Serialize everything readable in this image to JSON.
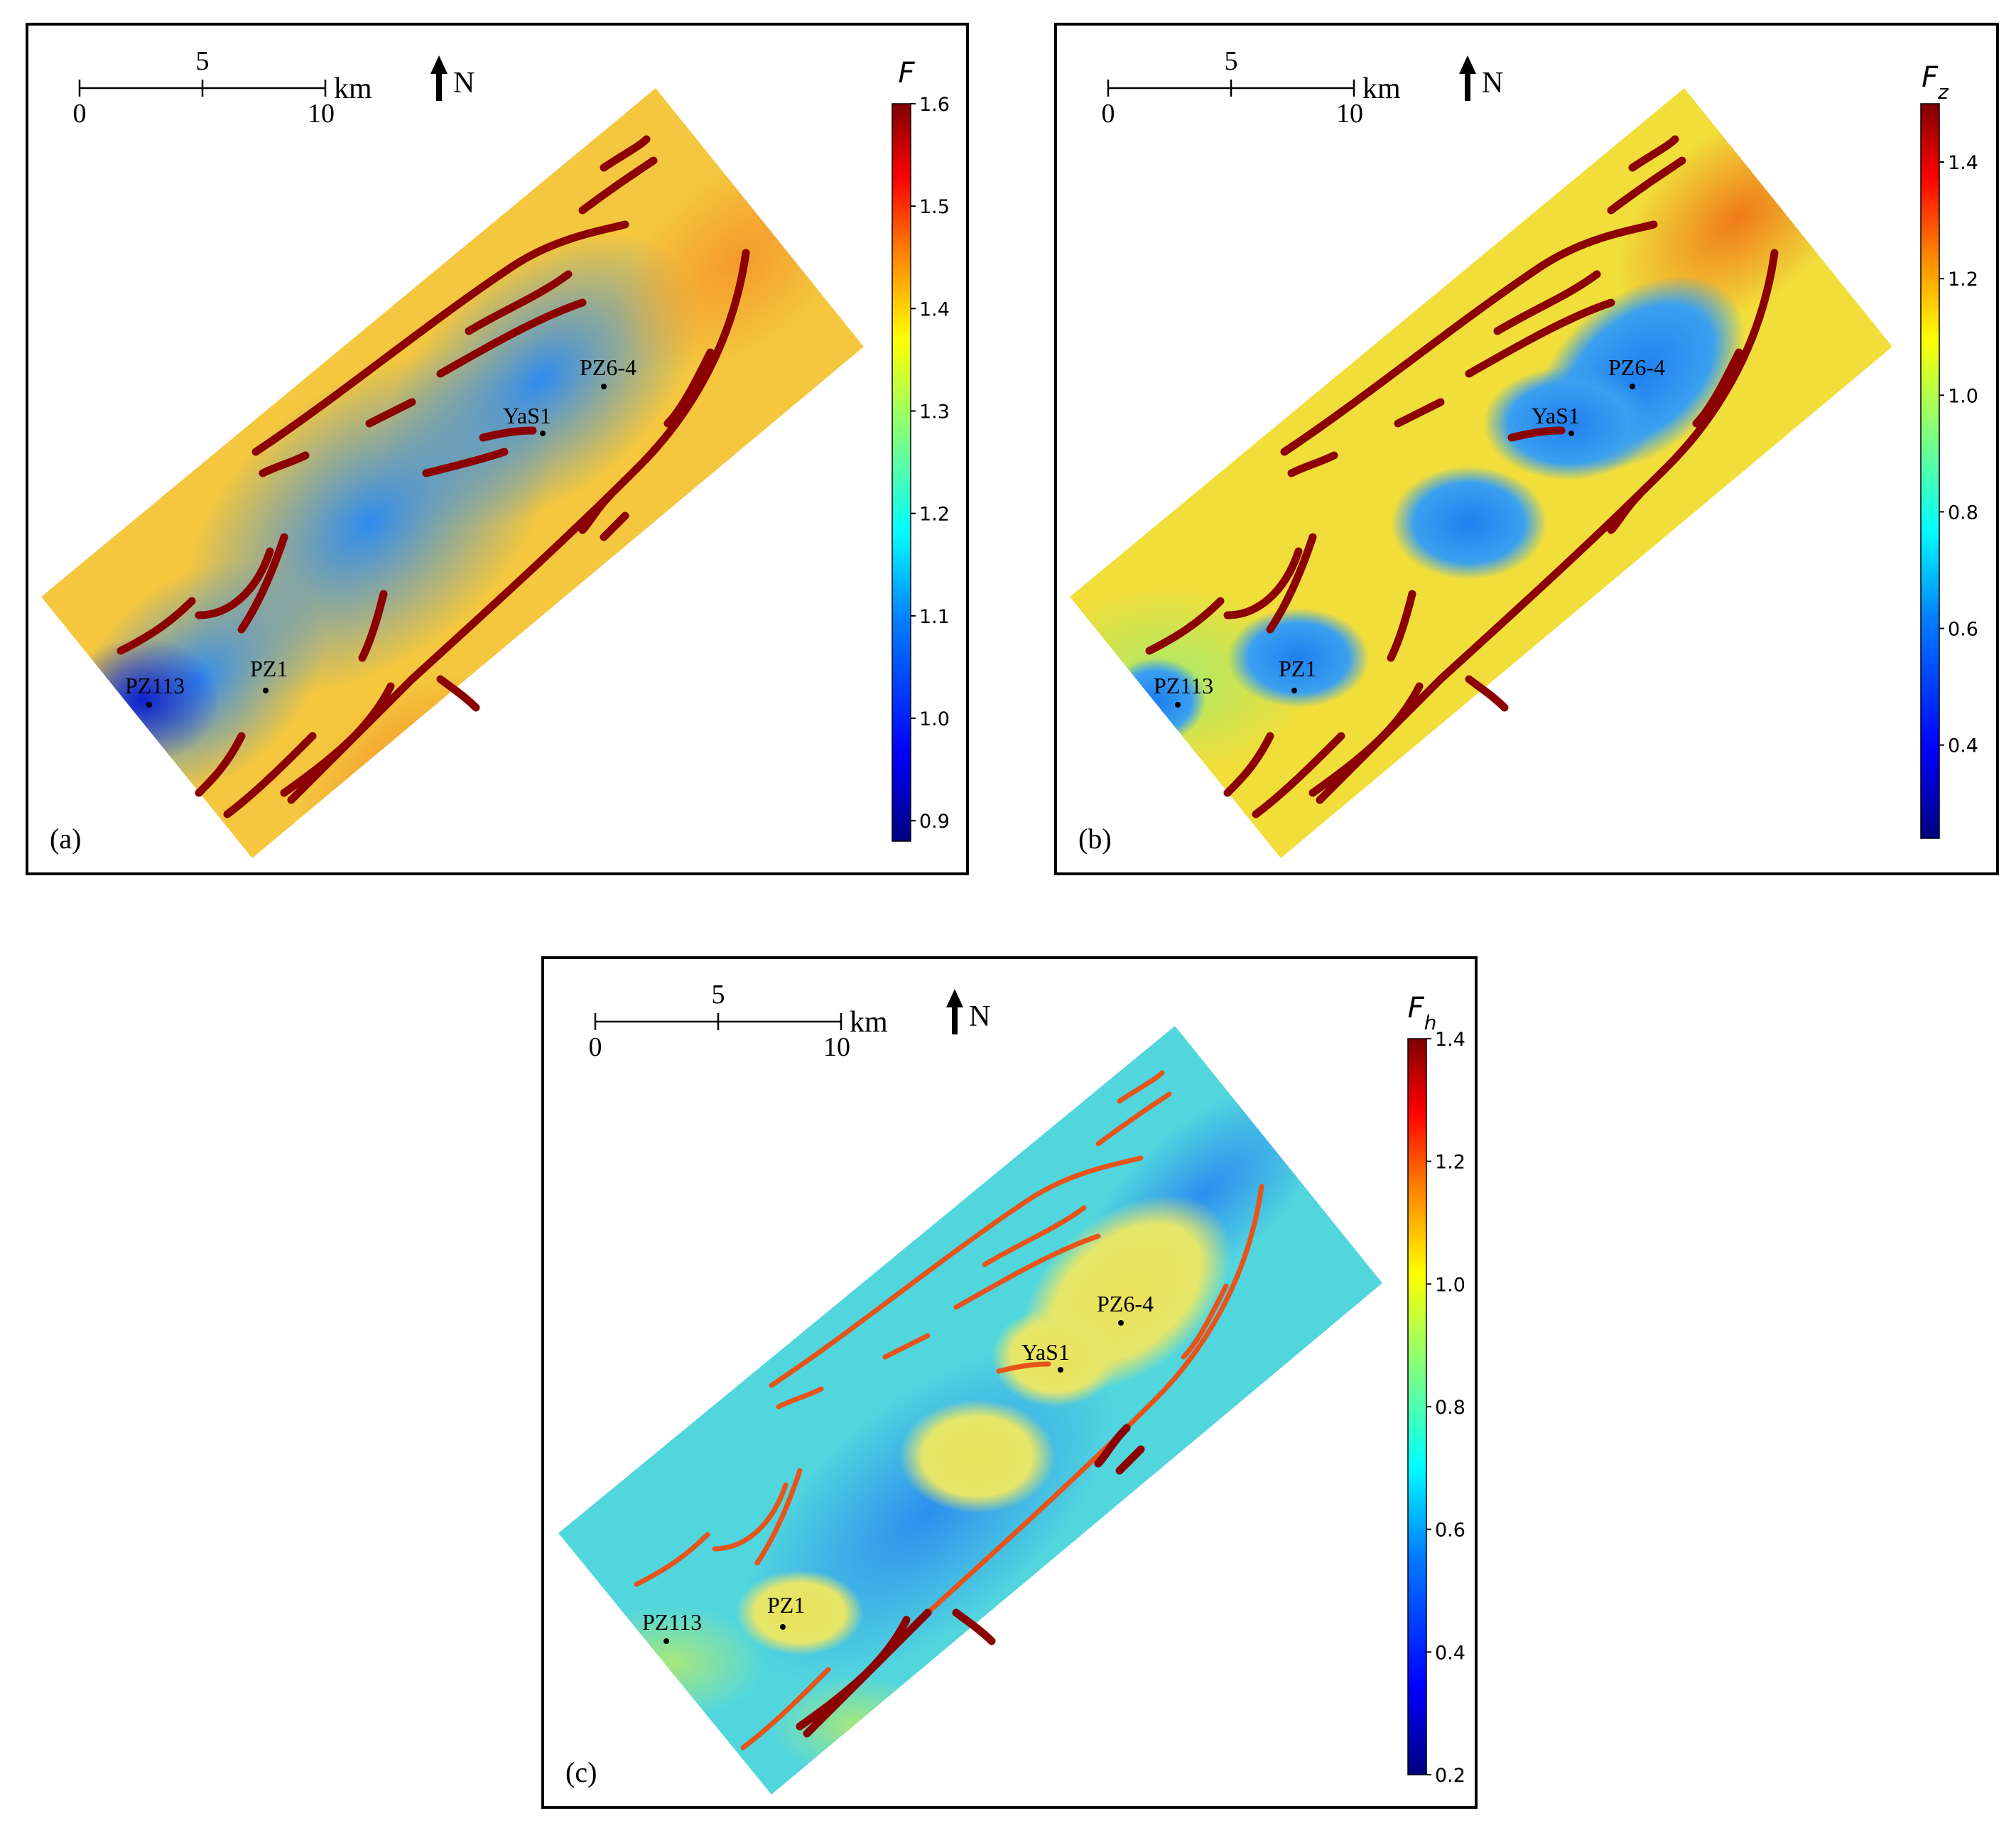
{
  "panels": [
    {
      "id": "a",
      "label": "(a)",
      "colorbar_title": "F",
      "colorbar_subscript": "",
      "colorbar_ticks": [
        "1.6",
        "1.5",
        "1.4",
        "1.3",
        "1.2",
        "1.1",
        "1.0",
        "0.9"
      ],
      "colorbar_range": [
        0.88,
        1.6
      ],
      "scale_labels": {
        "zero": "0",
        "mid": "5",
        "end": "10",
        "unit": "km"
      },
      "north_label": "N",
      "wells": [
        "PZ6-4",
        "YaS1",
        "PZ1",
        "PZ113"
      ]
    },
    {
      "id": "b",
      "label": "(b)",
      "colorbar_title": "F",
      "colorbar_subscript": "z",
      "colorbar_ticks": [
        "1.4",
        "1.2",
        "1.0",
        "0.8",
        "0.6",
        "0.4"
      ],
      "colorbar_range": [
        0.24,
        1.5
      ],
      "scale_labels": {
        "zero": "0",
        "mid": "5",
        "end": "10",
        "unit": "km"
      },
      "north_label": "N",
      "wells": [
        "PZ6-4",
        "YaS1",
        "PZ1",
        "PZ113"
      ]
    },
    {
      "id": "c",
      "label": "(c)",
      "colorbar_title": "F",
      "colorbar_subscript": "h",
      "colorbar_ticks": [
        "1.4",
        "1.2",
        "1.0",
        "0.8",
        "0.6",
        "0.4",
        "0.2"
      ],
      "colorbar_range": [
        0.2,
        1.4
      ],
      "scale_labels": {
        "zero": "0",
        "mid": "5",
        "end": "10",
        "unit": "km"
      },
      "north_label": "N",
      "wells": [
        "PZ6-4",
        "YaS1",
        "PZ1",
        "PZ113"
      ]
    }
  ],
  "colors": {
    "jet": [
      "#00007f",
      "#0000ff",
      "#007fff",
      "#00ffff",
      "#7fff7f",
      "#ffff00",
      "#ff7f00",
      "#ff0000",
      "#7f0000"
    ],
    "fault": "#8b0000",
    "frame": "#000000"
  }
}
